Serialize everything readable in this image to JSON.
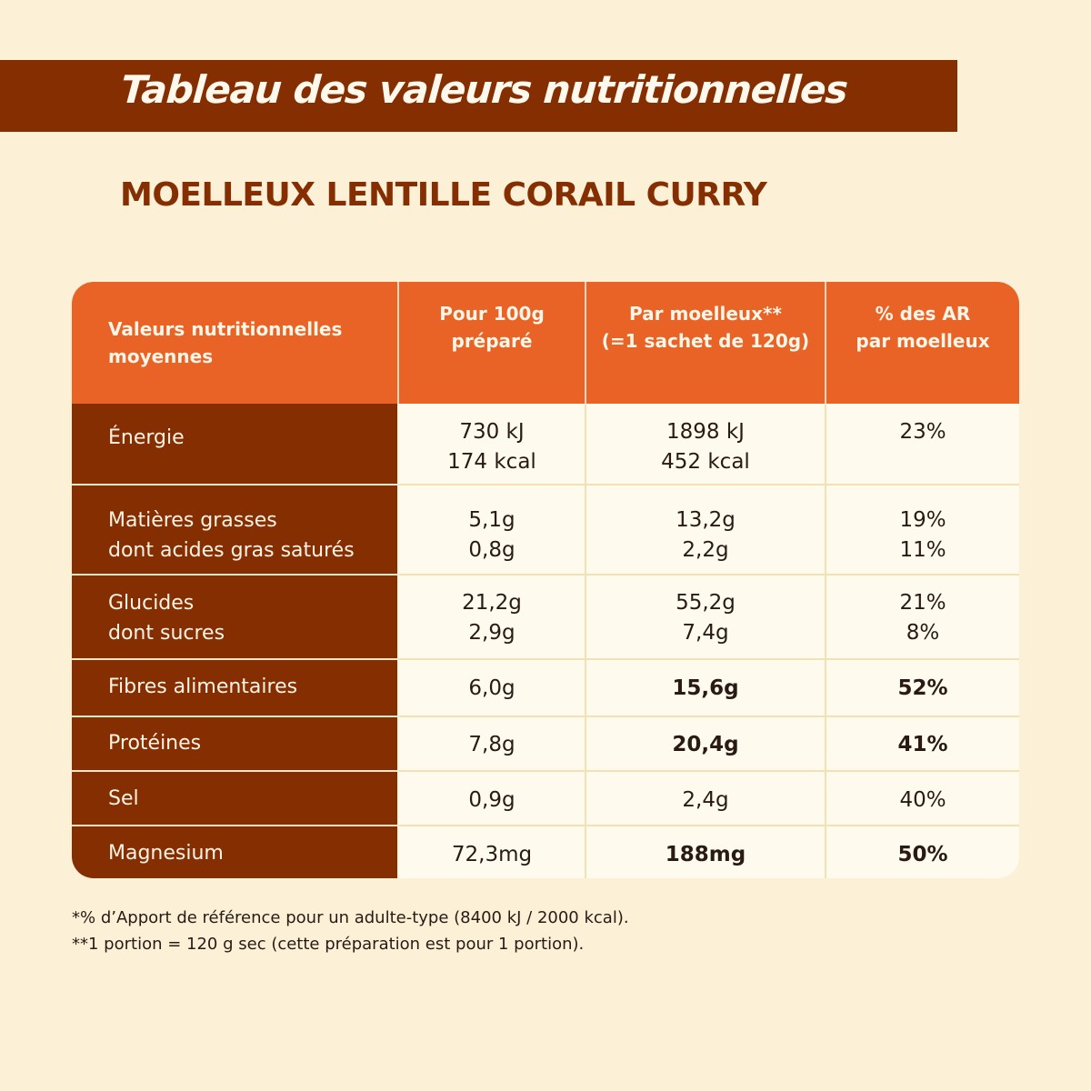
{
  "banner": {
    "title": "Tableau des valeurs nutritionnelles"
  },
  "product": {
    "name": "MOELLEUX LENTILLE CORAIL CURRY"
  },
  "table": {
    "headers": [
      [
        "Valeurs nutritionnelles",
        "moyennes"
      ],
      [
        "Pour 100g",
        "préparé"
      ],
      [
        "Par moelleux**",
        "(=1 sachet de 120g)"
      ],
      [
        "% des AR",
        "par moelleux"
      ]
    ],
    "rows": [
      {
        "label": [
          "Énergie"
        ],
        "per100": [
          "730 kJ",
          "174 kcal"
        ],
        "perPortion": [
          "1898 kJ",
          "452 kcal"
        ],
        "ar": [
          "23%"
        ],
        "bold": false
      },
      {
        "label": [
          "Matières grasses",
          "dont acides gras saturés"
        ],
        "per100": [
          "5,1g",
          "0,8g"
        ],
        "perPortion": [
          "13,2g",
          "2,2g"
        ],
        "ar": [
          "19%",
          "11%"
        ],
        "bold": false
      },
      {
        "label": [
          "Glucides",
          "dont sucres"
        ],
        "per100": [
          "21,2g",
          "2,9g"
        ],
        "perPortion": [
          "55,2g",
          "7,4g"
        ],
        "ar": [
          "21%",
          "8%"
        ],
        "bold": false
      },
      {
        "label": [
          "Fibres alimentaires"
        ],
        "per100": [
          "6,0g"
        ],
        "perPortion": [
          "15,6g"
        ],
        "ar": [
          "52%"
        ],
        "bold": true
      },
      {
        "label": [
          "Protéines"
        ],
        "per100": [
          "7,8g"
        ],
        "perPortion": [
          "20,4g"
        ],
        "ar": [
          "41%"
        ],
        "bold": true
      },
      {
        "label": [
          "Sel"
        ],
        "per100": [
          "0,9g"
        ],
        "perPortion": [
          "2,4g"
        ],
        "ar": [
          "40%"
        ],
        "bold": false
      },
      {
        "label": [
          "Magnesium"
        ],
        "per100": [
          "72,3mg"
        ],
        "perPortion": [
          "188mg"
        ],
        "ar": [
          "50%"
        ],
        "bold": true
      }
    ]
  },
  "footnotes": [
    "*% d’Apport de référence pour un adulte-type (8400 kJ / 2000 kcal).",
    "**1 portion = 120 g sec (cette préparation est pour 1 portion)."
  ],
  "colors": {
    "banner": "#842e02",
    "header": "#e96226",
    "background": "#fcf0d7",
    "cell": "#fffaee"
  }
}
